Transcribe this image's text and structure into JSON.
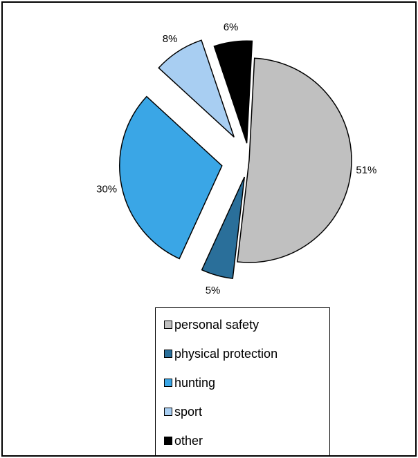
{
  "chart_data": {
    "type": "pie",
    "exploded": true,
    "categories": [
      "personal safety",
      "physical protection",
      "hunting",
      "sport",
      "other"
    ],
    "values": [
      51,
      5,
      30,
      8,
      6
    ],
    "labels": [
      "51%",
      "5%",
      "30%",
      "8%",
      "6%"
    ],
    "colors": [
      "#c0c0c0",
      "#2a6f9a",
      "#3aa6e6",
      "#a8cef2",
      "#000000"
    ],
    "legend_position": "bottom",
    "title": ""
  }
}
